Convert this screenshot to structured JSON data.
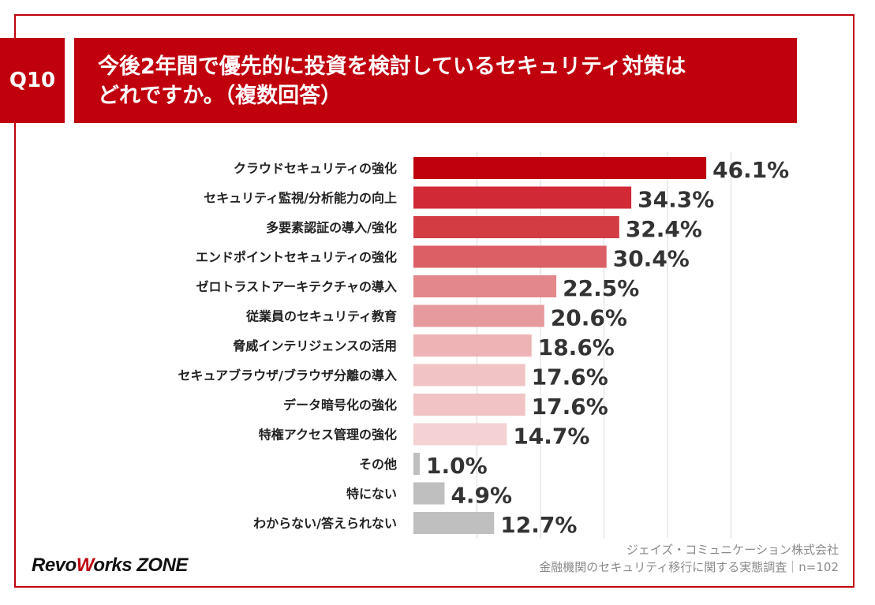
{
  "header": {
    "question_no": "Q10",
    "title_line1": "今後2年間で優先的に投資を検討しているセキュリティ対策は",
    "title_line2": "どれですか。（複数回答）"
  },
  "chart_data": {
    "type": "bar",
    "orientation": "horizontal",
    "categories": [
      "クラウドセキュリティの強化",
      "セキュリティ監視/分析能力の向上",
      "多要素認証の導入/強化",
      "エンドポイントセキュリティの強化",
      "ゼロトラストアーキテクチャの導入",
      "従業員のセキュリティ教育",
      "脅威インテリジェンスの活用",
      "セキュアブラウザ/ブラウザ分離の導入",
      "データ暗号化の強化",
      "特権アクセス管理の強化",
      "その他",
      "特にない",
      "わからない/答えられない"
    ],
    "values": [
      46.1,
      34.3,
      32.4,
      30.4,
      22.5,
      20.6,
      18.6,
      17.6,
      17.6,
      14.7,
      1.0,
      4.9,
      12.7
    ],
    "value_labels": [
      "46.1%",
      "34.3%",
      "32.4%",
      "30.4%",
      "22.5%",
      "20.6%",
      "18.6%",
      "17.6%",
      "17.6%",
      "14.7%",
      "1.0%",
      "4.9%",
      "12.7%"
    ],
    "bar_colors": [
      "#c0000d",
      "#d12a36",
      "#d43c44",
      "#dc5f66",
      "#e3878b",
      "#e79a9d",
      "#eeb3b5",
      "#f1c3c4",
      "#f1c3c4",
      "#f4d1d2",
      "#bfbfbf",
      "#bfbfbf",
      "#bfbfbf"
    ],
    "xlim": [
      0,
      50
    ],
    "grid": true,
    "title": "",
    "xlabel": "",
    "ylabel": ""
  },
  "footer": {
    "company": "ジェイズ・コミュニケーション株式会社",
    "survey": "金融機関のセキュリティ移行に関する実態調査｜n=102"
  },
  "logo": {
    "part1": "Revo",
    "part2": "W",
    "part3": "orks ZONE"
  }
}
